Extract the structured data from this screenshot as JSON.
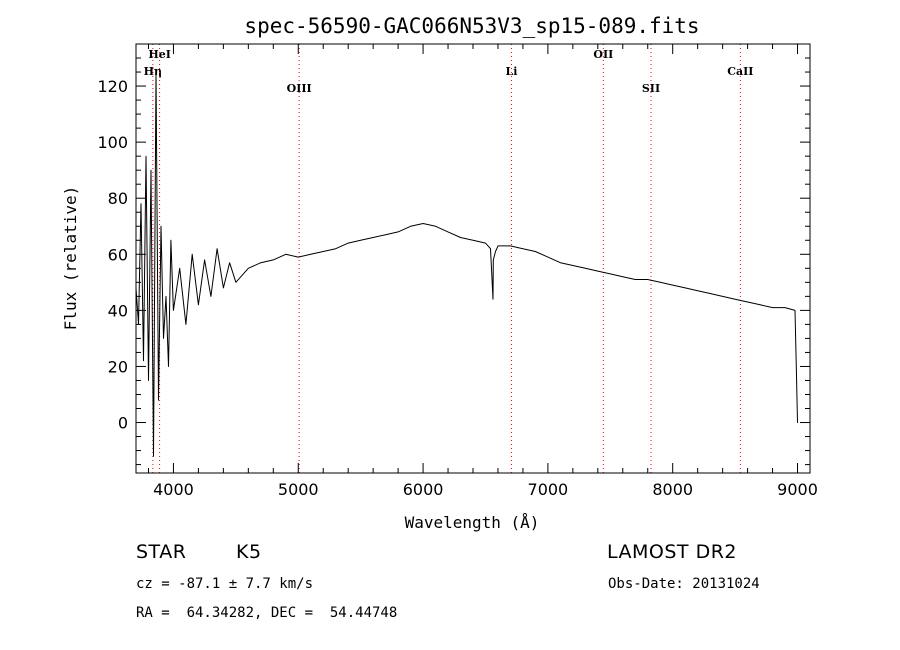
{
  "chart_data": {
    "type": "line",
    "title": "spec-56590-GAC066N53V3_sp15-089.fits",
    "xlabel": "Wavelength (Å)",
    "ylabel": "Flux (relative)",
    "xlim": [
      3700,
      9100
    ],
    "ylim": [
      -18,
      135
    ],
    "xticks": [
      4000,
      5000,
      6000,
      7000,
      8000,
      9000
    ],
    "yticks": [
      0,
      20,
      40,
      60,
      80,
      100,
      120
    ],
    "grid": false,
    "series": [
      {
        "x": [
          3700,
          3720,
          3740,
          3760,
          3780,
          3800,
          3820,
          3840,
          3860,
          3880,
          3900,
          3920,
          3940,
          3960,
          3980,
          4000,
          4050,
          4100,
          4150,
          4200,
          4250,
          4300,
          4350,
          4400,
          4450,
          4500,
          4600,
          4700,
          4800,
          4900,
          5000,
          5100,
          5200,
          5300,
          5400,
          5500,
          5600,
          5700,
          5800,
          5900,
          6000,
          6100,
          6200,
          6300,
          6400,
          6500,
          6540,
          6560,
          6563,
          6580,
          6600,
          6700,
          6800,
          6900,
          7000,
          7100,
          7200,
          7300,
          7400,
          7500,
          7600,
          7700,
          7800,
          7900,
          8000,
          8100,
          8200,
          8300,
          8400,
          8500,
          8600,
          8700,
          8800,
          8900,
          8980,
          8990,
          9000,
          9005
        ],
        "y": [
          48,
          35,
          78,
          22,
          95,
          15,
          90,
          -12,
          125,
          8,
          70,
          30,
          45,
          20,
          65,
          40,
          55,
          35,
          60,
          42,
          58,
          45,
          62,
          48,
          57,
          50,
          55,
          57,
          58,
          60,
          59,
          60,
          61,
          62,
          64,
          65,
          66,
          67,
          68,
          70,
          71,
          70,
          68,
          66,
          65,
          64,
          62,
          44,
          58,
          61,
          63,
          63,
          62,
          61,
          59,
          57,
          56,
          55,
          54,
          53,
          52,
          51,
          51,
          50,
          49,
          48,
          47,
          46,
          45,
          44,
          43,
          42,
          41,
          41,
          40,
          20,
          0,
          0
        ]
      }
    ],
    "lines": [
      {
        "name": "Hη",
        "x": 3835
      },
      {
        "name": "HeI",
        "x": 3889
      },
      {
        "name": "OIII",
        "x": 5007
      },
      {
        "name": "Li",
        "x": 6708
      },
      {
        "name": "OII",
        "x": 7444
      },
      {
        "name": "SII",
        "x": 7826
      },
      {
        "name": "CaII",
        "x": 8542
      }
    ]
  },
  "info": {
    "object_type": "STAR",
    "subclass": "K5",
    "survey": "LAMOST DR2",
    "cz_text": "cz = -87.1 ± 7.7 km/s",
    "obs_date_text": "Obs-Date: 20131024",
    "coords_text": "RA =  64.34282, DEC =  54.44748"
  },
  "colors": {
    "spectrum": "#000000",
    "line_markers": "#ff0000",
    "background": "#ffffff"
  }
}
